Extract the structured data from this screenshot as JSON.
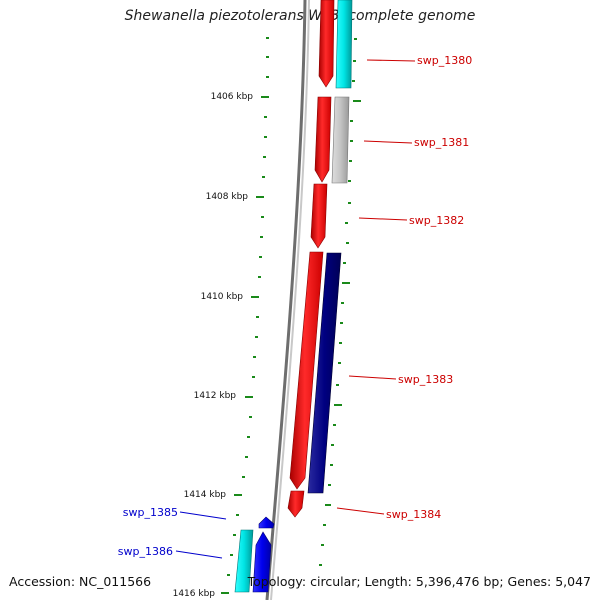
{
  "title": "Shewanella piezotolerans WP3, complete genome",
  "footer": {
    "accession": "Accession: NC_011566",
    "topology": "Topology: circular; Length: 5,396,476 bp; Genes: 5,047"
  },
  "ticks": [
    {
      "label": "1406 kbp",
      "kbp": 1406
    },
    {
      "label": "1408 kbp",
      "kbp": 1408
    },
    {
      "label": "1410 kbp",
      "kbp": 1410
    },
    {
      "label": "1412 kbp",
      "kbp": 1412
    },
    {
      "label": "1414 kbp",
      "kbp": 1414
    },
    {
      "label": "1416 kbp",
      "kbp": 1416
    }
  ],
  "genes": [
    {
      "label": "swp_1380",
      "color": "#cc0000"
    },
    {
      "label": "swp_1381",
      "color": "#cc0000"
    },
    {
      "label": "swp_1382",
      "color": "#cc0000"
    },
    {
      "label": "swp_1383",
      "color": "#cc0000"
    },
    {
      "label": "swp_1384",
      "color": "#cc0000"
    },
    {
      "label": "swp_1385",
      "color": "#0000cc"
    },
    {
      "label": "swp_1386",
      "color": "#0000cc"
    }
  ],
  "colors": {
    "forward_strand": "#ee1111",
    "reverse_strand_cyan": "#11dddd",
    "reverse_strand_navy": "#000077",
    "gray_feature": "#b8b8b8",
    "blue_feature": "#1111ee",
    "gc_marks": "#1a8a1a",
    "backbone": "#888888"
  }
}
